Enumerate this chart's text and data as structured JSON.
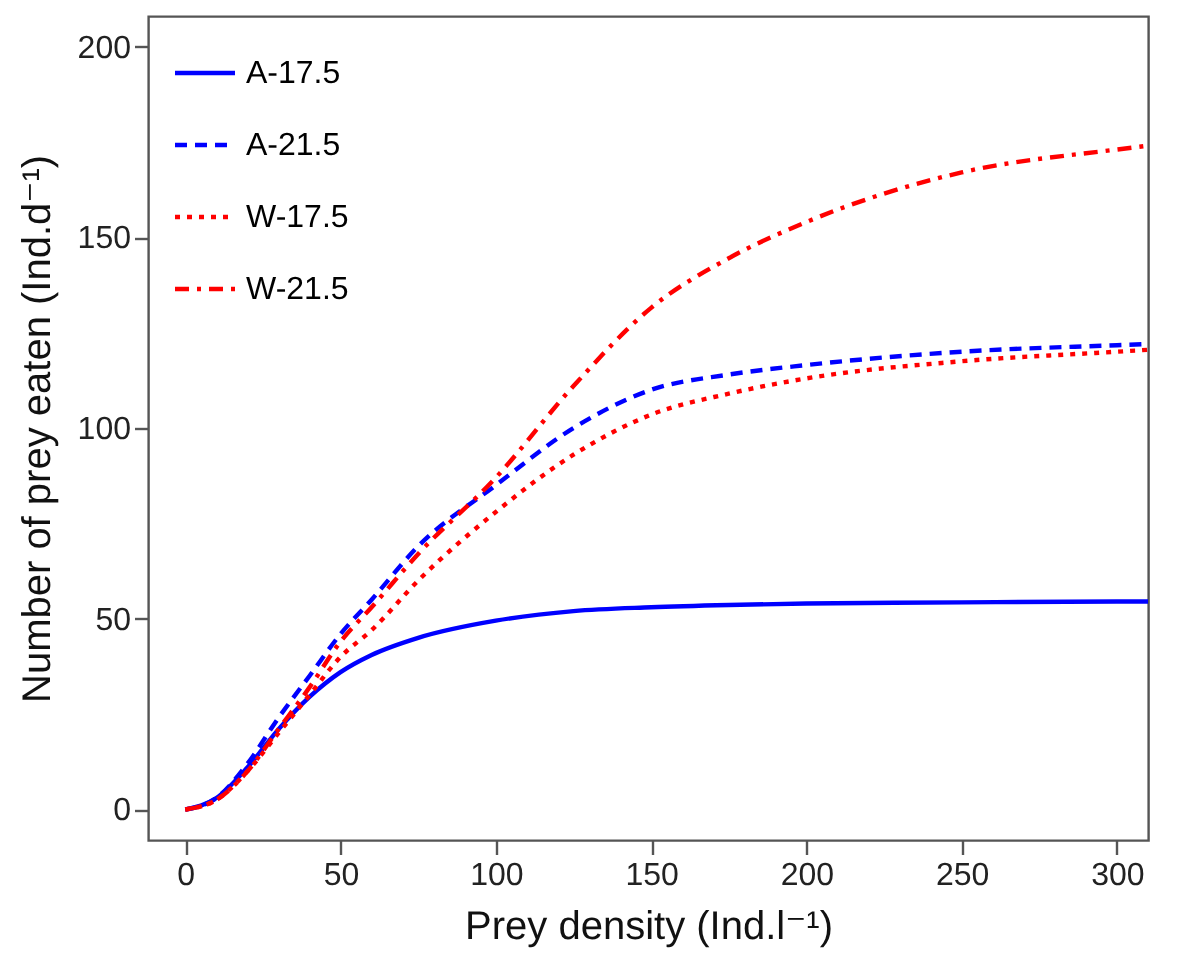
{
  "chart_data": {
    "type": "line",
    "xlabel": "Prey density  (Ind.l⁻¹)",
    "ylabel": "Number of prey eaten  (Ind.d⁻¹)",
    "x": [
      0,
      10,
      20,
      30,
      40,
      50,
      60,
      75,
      100,
      125,
      150,
      175,
      200,
      250,
      300,
      310
    ],
    "xlim": [
      -12,
      310
    ],
    "xticks": [
      0,
      50,
      100,
      150,
      200,
      250,
      300
    ],
    "ylim": [
      -8,
      208
    ],
    "yticks": [
      0,
      50,
      100,
      150,
      200
    ],
    "grid": false,
    "legend": "top left",
    "marker": "none",
    "series": [
      {
        "name": "A-17.5",
        "color": "#0000ff",
        "line_style": "solid",
        "values": [
          0,
          3,
          11,
          21,
          29.5,
          36,
          40.5,
          45,
          49.5,
          52,
          53,
          53.6,
          54,
          54.3,
          54.5,
          54.5
        ]
      },
      {
        "name": "A-21.5",
        "color": "#0000ff",
        "line_style": "dashed",
        "values": [
          0,
          3,
          12,
          24,
          35,
          46,
          55,
          69,
          85,
          100,
          110,
          114,
          116.5,
          120,
          121.7,
          122
        ]
      },
      {
        "name": "W-17.5",
        "color": "#ff0000",
        "line_style": "dotted",
        "values": [
          0,
          2.5,
          10,
          20,
          30,
          40,
          47,
          60,
          78,
          93,
          103.5,
          109,
          113,
          117.5,
          120,
          120.5
        ]
      },
      {
        "name": "W-21.5",
        "color": "#ff0000",
        "line_style": "dashdot",
        "values": [
          0,
          2.5,
          10,
          21,
          32,
          44,
          53,
          67,
          87,
          111,
          131.5,
          144.5,
          154,
          167,
          173,
          174
        ]
      }
    ]
  }
}
